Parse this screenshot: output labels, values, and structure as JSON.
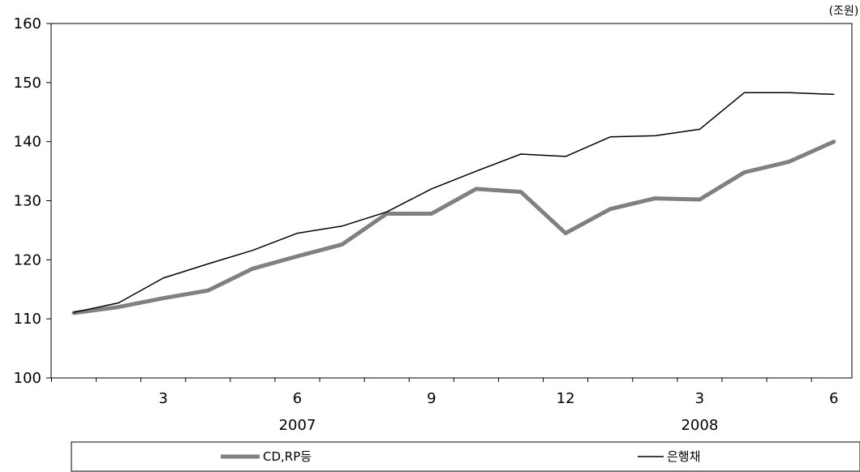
{
  "chart_data": {
    "type": "line",
    "unit_label": "(조원)",
    "ylim": [
      100,
      160
    ],
    "yticks": [
      100,
      110,
      120,
      130,
      140,
      150,
      160
    ],
    "x": [
      "2007-01",
      "2007-02",
      "2007-03",
      "2007-04",
      "2007-05",
      "2007-06",
      "2007-07",
      "2007-08",
      "2007-09",
      "2007-10",
      "2007-11",
      "2007-12",
      "2008-01",
      "2008-02",
      "2008-03",
      "2008-04",
      "2008-05",
      "2008-06"
    ],
    "x_tick_labels": [
      {
        "x": "2007-03",
        "label": "3"
      },
      {
        "x": "2007-06",
        "label": "6"
      },
      {
        "x": "2007-09",
        "label": "9"
      },
      {
        "x": "2007-12",
        "label": "12"
      },
      {
        "x": "2008-03",
        "label": "3"
      },
      {
        "x": "2008-06",
        "label": "6"
      }
    ],
    "year_labels": [
      {
        "x": "2007-06",
        "label": "2007"
      },
      {
        "x": "2008-03",
        "label": "2008"
      }
    ],
    "series": [
      {
        "name": "CD,RP등",
        "color": "#808080",
        "style": "thick",
        "values": [
          111.0,
          112.0,
          113.5,
          114.8,
          118.5,
          120.6,
          122.6,
          127.8,
          127.8,
          132.0,
          131.5,
          124.5,
          128.6,
          130.4,
          130.2,
          134.8,
          136.6,
          140.0
        ]
      },
      {
        "name": "은행채",
        "color": "#000000",
        "style": "thin",
        "values": [
          111.1,
          112.7,
          116.9,
          119.3,
          121.6,
          124.5,
          125.7,
          128.1,
          132.0,
          135.0,
          137.9,
          137.5,
          140.8,
          141.0,
          142.1,
          148.3,
          148.3,
          148.0
        ]
      }
    ],
    "legend_position": "bottom"
  }
}
